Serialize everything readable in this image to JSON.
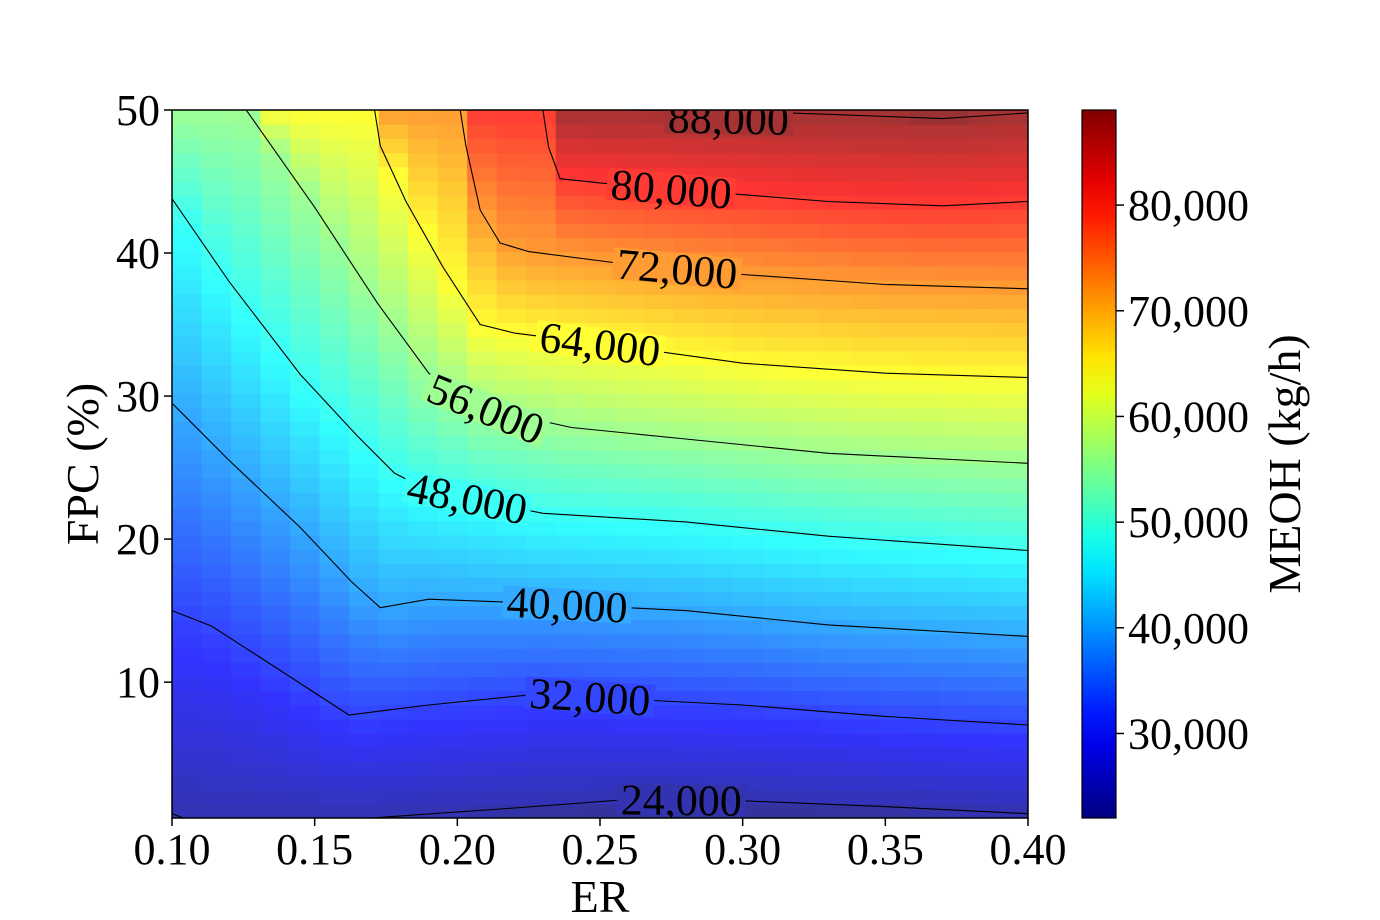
{
  "chart_data": {
    "type": "heatmap",
    "subtype": "filled-contour-with-isolines",
    "title": "",
    "xlabel": "ER",
    "ylabel": "FPC (%)",
    "xlim": [
      0.1,
      0.4
    ],
    "ylim": [
      0.5,
      50
    ],
    "x_ticks": [
      "0.10",
      "0.15",
      "0.20",
      "0.25",
      "0.30",
      "0.35",
      "0.40"
    ],
    "y_ticks": [
      "10",
      "20",
      "30",
      "40",
      "50"
    ],
    "colorbar": {
      "label": "MEOH (kg/h)",
      "colormap": "jet",
      "range": [
        22000,
        89000
      ],
      "ticks": [
        "30,000",
        "40,000",
        "50,000",
        "60,000",
        "70,000",
        "80,000"
      ]
    },
    "grid": false,
    "contours": [
      {
        "level": 24000,
        "label": "24,000",
        "points": [
          [
            0.1,
            0.8
          ],
          [
            0.104,
            0.5
          ],
          [
            0.13,
            0.5
          ],
          [
            0.17,
            0.5
          ],
          [
            0.22,
            1.2
          ],
          [
            0.26,
            1.8
          ],
          [
            0.3,
            1.7
          ],
          [
            0.35,
            1.3
          ],
          [
            0.4,
            0.8
          ]
        ]
      },
      {
        "level": 32000,
        "label": "32,000",
        "points": [
          [
            0.1,
            15.0
          ],
          [
            0.114,
            13.9
          ],
          [
            0.135,
            11.2
          ],
          [
            0.162,
            7.7
          ],
          [
            0.19,
            8.4
          ],
          [
            0.23,
            9.2
          ],
          [
            0.26,
            8.8
          ],
          [
            0.3,
            8.4
          ],
          [
            0.35,
            7.6
          ],
          [
            0.4,
            7.0
          ]
        ]
      },
      {
        "level": 40000,
        "label": "40,000",
        "points": [
          [
            0.1,
            29.5
          ],
          [
            0.12,
            25.5
          ],
          [
            0.145,
            20.8
          ],
          [
            0.163,
            17.0
          ],
          [
            0.173,
            15.2
          ],
          [
            0.19,
            15.8
          ],
          [
            0.23,
            15.5
          ],
          [
            0.28,
            15.0
          ],
          [
            0.33,
            14.0
          ],
          [
            0.4,
            13.2
          ]
        ]
      },
      {
        "level": 48000,
        "label": "48,000",
        "points": [
          [
            0.1,
            43.8
          ],
          [
            0.12,
            38.0
          ],
          [
            0.145,
            31.5
          ],
          [
            0.165,
            27.2
          ],
          [
            0.178,
            24.6
          ],
          [
            0.19,
            23.4
          ],
          [
            0.23,
            21.8
          ],
          [
            0.28,
            21.2
          ],
          [
            0.33,
            20.2
          ],
          [
            0.4,
            19.2
          ]
        ]
      },
      {
        "level": 56000,
        "label": "56,000",
        "points": [
          [
            0.126,
            50.0
          ],
          [
            0.15,
            43.2
          ],
          [
            0.172,
            36.5
          ],
          [
            0.19,
            31.6
          ],
          [
            0.208,
            29.2
          ],
          [
            0.24,
            27.8
          ],
          [
            0.28,
            27.0
          ],
          [
            0.33,
            26.0
          ],
          [
            0.4,
            25.3
          ]
        ]
      },
      {
        "level": 64000,
        "label": "64,000",
        "points": [
          [
            0.171,
            50.0
          ],
          [
            0.173,
            47.5
          ],
          [
            0.182,
            43.6
          ],
          [
            0.195,
            39.0
          ],
          [
            0.208,
            35.0
          ],
          [
            0.22,
            34.4
          ],
          [
            0.26,
            33.4
          ],
          [
            0.3,
            32.3
          ],
          [
            0.35,
            31.6
          ],
          [
            0.4,
            31.3
          ]
        ]
      },
      {
        "level": 72000,
        "label": "72,000",
        "points": [
          [
            0.201,
            50.0
          ],
          [
            0.203,
            47.5
          ],
          [
            0.208,
            43.0
          ],
          [
            0.215,
            40.7
          ],
          [
            0.225,
            40.1
          ],
          [
            0.26,
            39.2
          ],
          [
            0.3,
            38.5
          ],
          [
            0.35,
            37.8
          ],
          [
            0.4,
            37.5
          ]
        ]
      },
      {
        "level": 80000,
        "label": "80,000",
        "points": [
          [
            0.23,
            50.0
          ],
          [
            0.232,
            47.4
          ],
          [
            0.236,
            45.2
          ],
          [
            0.25,
            44.9
          ],
          [
            0.28,
            44.4
          ],
          [
            0.33,
            43.6
          ],
          [
            0.37,
            43.3
          ],
          [
            0.4,
            43.6
          ]
        ]
      },
      {
        "level": 88000,
        "label": "88,000",
        "points": [
          [
            0.24,
            50.0
          ],
          [
            0.26,
            50.0
          ],
          [
            0.3,
            49.9
          ],
          [
            0.33,
            49.7
          ],
          [
            0.37,
            49.4
          ],
          [
            0.4,
            49.8
          ]
        ]
      }
    ]
  }
}
